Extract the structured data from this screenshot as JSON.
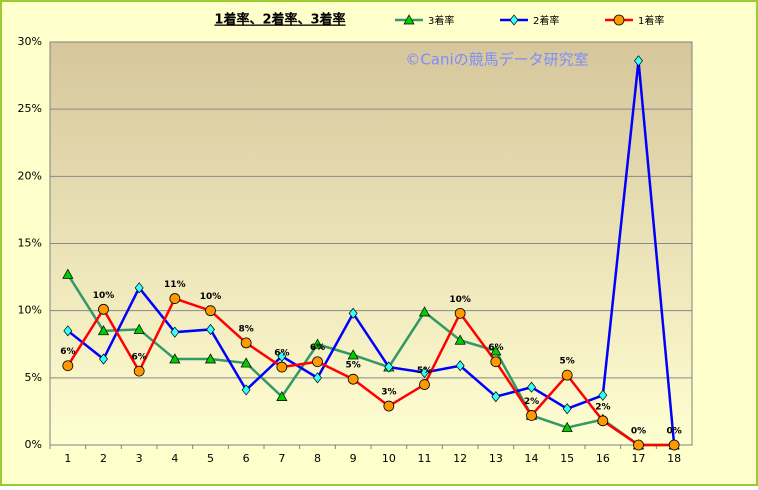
{
  "chart_data": {
    "type": "line",
    "title": "1着率、2着率、3着率",
    "annotation": "©Caniの競馬データ研究室",
    "categories": [
      "1",
      "2",
      "3",
      "4",
      "5",
      "6",
      "7",
      "8",
      "9",
      "10",
      "11",
      "12",
      "13",
      "14",
      "15",
      "16",
      "17",
      "18"
    ],
    "ylim": [
      0,
      30
    ],
    "yticks": [
      {
        "value": 0,
        "label": "0%"
      },
      {
        "value": 5,
        "label": "5%"
      },
      {
        "value": 10,
        "label": "10%"
      },
      {
        "value": 15,
        "label": "15%"
      },
      {
        "value": 20,
        "label": "20%"
      },
      {
        "value": 25,
        "label": "25%"
      },
      {
        "value": 30,
        "label": "30%"
      }
    ],
    "grid": true,
    "series": [
      {
        "name": "3着率",
        "color": "#339966",
        "marker": "triangle",
        "marker_color": "#00cc00",
        "values": [
          12.7,
          8.5,
          8.6,
          6.4,
          6.4,
          6.1,
          3.6,
          7.5,
          6.7,
          5.8,
          9.9,
          7.8,
          7.0,
          2.2,
          1.3,
          1.9,
          0,
          0
        ]
      },
      {
        "name": "2着率",
        "color": "#0000ff",
        "marker": "diamond",
        "marker_color": "#33ffff",
        "values": [
          8.5,
          6.4,
          11.7,
          8.4,
          8.6,
          4.1,
          6.6,
          5.0,
          9.8,
          5.8,
          5.4,
          5.9,
          3.6,
          4.3,
          2.7,
          3.7,
          28.6,
          0
        ]
      },
      {
        "name": "1着率",
        "color": "#ff0000",
        "marker": "circle",
        "marker_color": "#ff9900",
        "values": [
          5.9,
          10.1,
          5.5,
          10.9,
          10.0,
          7.6,
          5.8,
          6.2,
          4.9,
          2.9,
          4.5,
          9.8,
          6.2,
          2.2,
          5.2,
          1.8,
          0,
          0
        ],
        "value_labels": [
          "6%",
          "10%",
          "6%",
          "11%",
          "10%",
          "8%",
          "6%",
          "6%",
          "5%",
          "3%",
          "5%",
          "10%",
          "6%",
          "2%",
          "5%",
          "2%",
          "0%",
          "0%"
        ]
      }
    ]
  }
}
